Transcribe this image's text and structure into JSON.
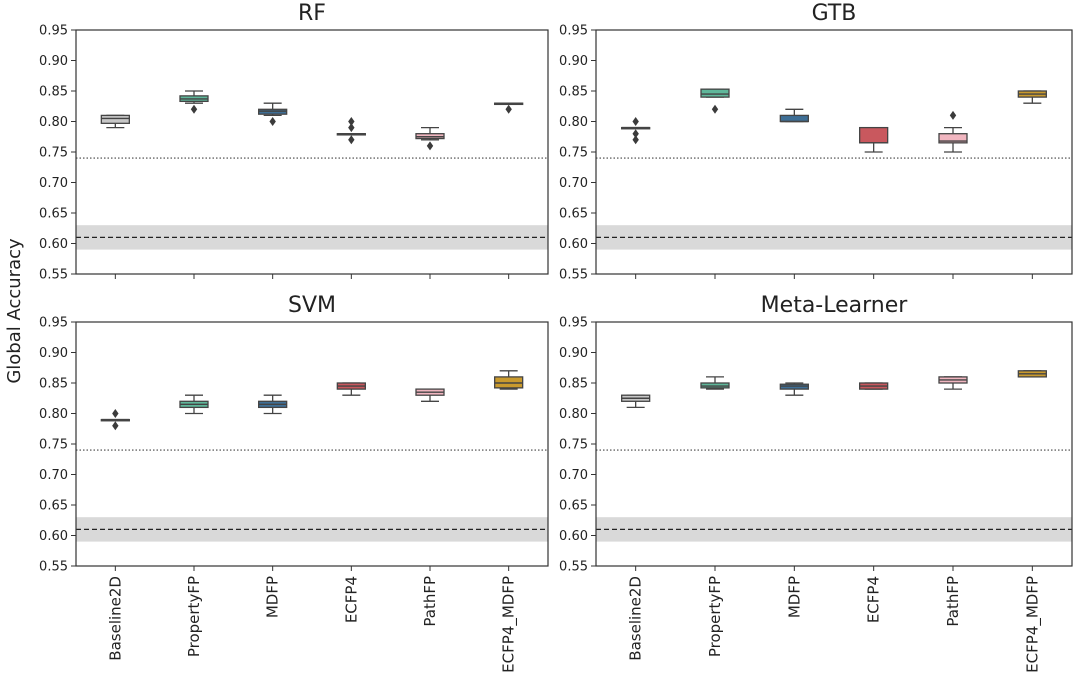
{
  "chart_data": {
    "type": "box",
    "ylabel": "Global Accuracy",
    "ylim": [
      0.55,
      0.95
    ],
    "yticks": [
      0.55,
      0.6,
      0.65,
      0.7,
      0.75,
      0.8,
      0.85,
      0.9,
      0.95
    ],
    "ytick_labels": [
      "0.55",
      "0.60",
      "0.65",
      "0.70",
      "0.75",
      "0.80",
      "0.85",
      "0.90",
      "0.95"
    ],
    "categories": [
      "Baseline2D",
      "PropertyFP",
      "MDFP",
      "ECFP4",
      "PathFP",
      "ECFP4_MDFP"
    ],
    "colors": {
      "Baseline2D": "#c7c7c7",
      "PropertyFP": "#5fb79a",
      "MDFP": "#3f6f96",
      "ECFP4": "#c9585e",
      "PathFP": "#f1b6c0",
      "ECFP4_MDFP": "#c99a2e",
      "reference_band": "#d9d9d9",
      "line_stroke": "#444444"
    },
    "reference": {
      "dotted_line": 0.74,
      "dashed_line": 0.61,
      "band": [
        0.59,
        0.63
      ]
    },
    "panels": [
      {
        "title": "RF",
        "boxes": [
          {
            "category": "Baseline2D",
            "whisker_low": 0.79,
            "q1": 0.797,
            "median": 0.805,
            "q3": 0.81,
            "whisker_high": 0.81,
            "outliers": []
          },
          {
            "category": "PropertyFP",
            "whisker_low": 0.83,
            "q1": 0.833,
            "median": 0.837,
            "q3": 0.842,
            "whisker_high": 0.85,
            "outliers": [
              0.82
            ]
          },
          {
            "category": "MDFP",
            "whisker_low": 0.81,
            "q1": 0.812,
            "median": 0.817,
            "q3": 0.82,
            "whisker_high": 0.83,
            "outliers": [
              0.8
            ]
          },
          {
            "category": "ECFP4",
            "whisker_low": 0.78,
            "q1": 0.78,
            "median": 0.78,
            "q3": 0.78,
            "whisker_high": 0.78,
            "outliers": [
              0.8,
              0.79,
              0.77
            ]
          },
          {
            "category": "PathFP",
            "whisker_low": 0.77,
            "q1": 0.772,
            "median": 0.775,
            "q3": 0.78,
            "whisker_high": 0.79,
            "outliers": [
              0.76
            ]
          },
          {
            "category": "ECFP4_MDFP",
            "whisker_low": 0.83,
            "q1": 0.83,
            "median": 0.83,
            "q3": 0.83,
            "whisker_high": 0.83,
            "outliers": [
              0.82
            ]
          }
        ]
      },
      {
        "title": "GTB",
        "boxes": [
          {
            "category": "Baseline2D",
            "whisker_low": 0.79,
            "q1": 0.79,
            "median": 0.79,
            "q3": 0.79,
            "whisker_high": 0.79,
            "outliers": [
              0.8,
              0.78,
              0.77
            ]
          },
          {
            "category": "PropertyFP",
            "whisker_low": 0.84,
            "q1": 0.84,
            "median": 0.845,
            "q3": 0.853,
            "whisker_high": 0.853,
            "outliers": [
              0.82
            ]
          },
          {
            "category": "MDFP",
            "whisker_low": 0.8,
            "q1": 0.8,
            "median": 0.8,
            "q3": 0.81,
            "whisker_high": 0.82,
            "outliers": []
          },
          {
            "category": "ECFP4",
            "whisker_low": 0.75,
            "q1": 0.765,
            "median": 0.765,
            "q3": 0.79,
            "whisker_high": 0.79,
            "outliers": []
          },
          {
            "category": "PathFP",
            "whisker_low": 0.75,
            "q1": 0.765,
            "median": 0.768,
            "q3": 0.78,
            "whisker_high": 0.79,
            "outliers": [
              0.81
            ]
          },
          {
            "category": "ECFP4_MDFP",
            "whisker_low": 0.83,
            "q1": 0.84,
            "median": 0.845,
            "q3": 0.85,
            "whisker_high": 0.85,
            "outliers": []
          }
        ]
      },
      {
        "title": "SVM",
        "boxes": [
          {
            "category": "Baseline2D",
            "whisker_low": 0.79,
            "q1": 0.79,
            "median": 0.79,
            "q3": 0.79,
            "whisker_high": 0.79,
            "outliers": [
              0.8,
              0.78
            ]
          },
          {
            "category": "PropertyFP",
            "whisker_low": 0.8,
            "q1": 0.81,
            "median": 0.815,
            "q3": 0.82,
            "whisker_high": 0.83,
            "outliers": []
          },
          {
            "category": "MDFP",
            "whisker_low": 0.8,
            "q1": 0.81,
            "median": 0.815,
            "q3": 0.82,
            "whisker_high": 0.83,
            "outliers": []
          },
          {
            "category": "ECFP4",
            "whisker_low": 0.83,
            "q1": 0.84,
            "median": 0.845,
            "q3": 0.85,
            "whisker_high": 0.85,
            "outliers": []
          },
          {
            "category": "PathFP",
            "whisker_low": 0.82,
            "q1": 0.83,
            "median": 0.835,
            "q3": 0.84,
            "whisker_high": 0.84,
            "outliers": []
          },
          {
            "category": "ECFP4_MDFP",
            "whisker_low": 0.84,
            "q1": 0.842,
            "median": 0.85,
            "q3": 0.86,
            "whisker_high": 0.87,
            "outliers": []
          }
        ]
      },
      {
        "title": "Meta-Learner",
        "boxes": [
          {
            "category": "Baseline2D",
            "whisker_low": 0.81,
            "q1": 0.82,
            "median": 0.825,
            "q3": 0.83,
            "whisker_high": 0.83,
            "outliers": []
          },
          {
            "category": "PropertyFP",
            "whisker_low": 0.84,
            "q1": 0.842,
            "median": 0.845,
            "q3": 0.85,
            "whisker_high": 0.86,
            "outliers": []
          },
          {
            "category": "MDFP",
            "whisker_low": 0.83,
            "q1": 0.84,
            "median": 0.845,
            "q3": 0.848,
            "whisker_high": 0.85,
            "outliers": []
          },
          {
            "category": "ECFP4",
            "whisker_low": 0.84,
            "q1": 0.84,
            "median": 0.845,
            "q3": 0.85,
            "whisker_high": 0.85,
            "outliers": []
          },
          {
            "category": "PathFP",
            "whisker_low": 0.84,
            "q1": 0.85,
            "median": 0.855,
            "q3": 0.86,
            "whisker_high": 0.86,
            "outliers": []
          },
          {
            "category": "ECFP4_MDFP",
            "whisker_low": 0.86,
            "q1": 0.86,
            "median": 0.865,
            "q3": 0.87,
            "whisker_high": 0.87,
            "outliers": []
          }
        ]
      }
    ]
  }
}
